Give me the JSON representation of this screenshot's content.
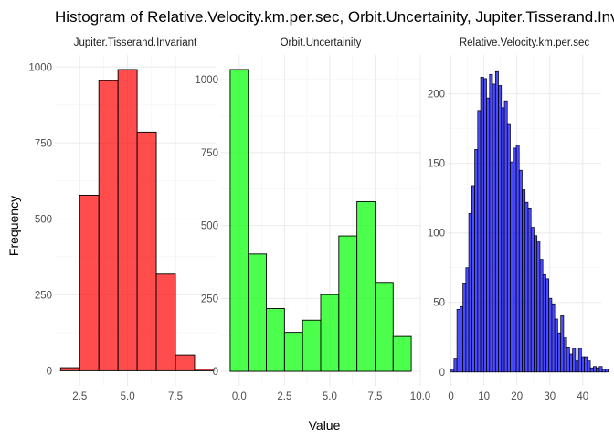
{
  "chart_data": {
    "type": "bar",
    "title": "Histogram of Relative.Velocity.km.per.sec, Orbit.Uncertainity, Jupiter.Tisserand.Invariant",
    "xlabel": "Value",
    "ylabel": "Frequency",
    "panels": [
      {
        "name": "Jupiter.Tisserand.Invariant",
        "fill": "#ff0000",
        "xlim": [
          1.2,
          9.6
        ],
        "ylim": [
          -50,
          1040
        ],
        "xticks": [
          2.5,
          5.0,
          7.5
        ],
        "xtick_labels": [
          "2.5",
          "5.0",
          "7.5"
        ],
        "yticks": [
          0,
          250,
          500,
          750,
          1000
        ],
        "ytick_labels": [
          "0",
          "250",
          "500",
          "750",
          "1000"
        ],
        "bins": [
          {
            "x0": 1.5,
            "x1": 2.5,
            "count": 10
          },
          {
            "x0": 2.5,
            "x1": 3.5,
            "count": 578
          },
          {
            "x0": 3.5,
            "x1": 4.5,
            "count": 955
          },
          {
            "x0": 4.5,
            "x1": 5.5,
            "count": 992
          },
          {
            "x0": 5.5,
            "x1": 6.5,
            "count": 786
          },
          {
            "x0": 6.5,
            "x1": 7.5,
            "count": 318
          },
          {
            "x0": 7.5,
            "x1": 8.5,
            "count": 52
          },
          {
            "x0": 8.5,
            "x1": 9.5,
            "count": 5
          }
        ]
      },
      {
        "name": "Orbit.Uncertainity",
        "fill": "#00ff00",
        "xlim": [
          -1.0,
          10.0
        ],
        "ylim": [
          -50,
          1085
        ],
        "xticks": [
          0.0,
          2.5,
          5.0,
          7.5,
          10.0
        ],
        "xtick_labels": [
          "0.0",
          "2.5",
          "5.0",
          "7.5",
          "10.0"
        ],
        "yticks": [
          0,
          250,
          500,
          750,
          1000
        ],
        "ytick_labels": [
          "0",
          "250",
          "500",
          "750",
          "1000"
        ],
        "bins": [
          {
            "x0": -0.5,
            "x1": 0.5,
            "count": 1035
          },
          {
            "x0": 0.5,
            "x1": 1.5,
            "count": 402
          },
          {
            "x0": 1.5,
            "x1": 2.5,
            "count": 215
          },
          {
            "x0": 2.5,
            "x1": 3.5,
            "count": 133
          },
          {
            "x0": 3.5,
            "x1": 4.5,
            "count": 175
          },
          {
            "x0": 4.5,
            "x1": 5.5,
            "count": 263
          },
          {
            "x0": 5.5,
            "x1": 6.5,
            "count": 464
          },
          {
            "x0": 6.5,
            "x1": 7.5,
            "count": 582
          },
          {
            "x0": 7.5,
            "x1": 8.5,
            "count": 305
          },
          {
            "x0": 8.5,
            "x1": 9.5,
            "count": 122
          }
        ]
      },
      {
        "name": "Relative.Velocity.km.per.sec",
        "fill": "#0000ff",
        "xlim": [
          -1.0,
          45.6
        ],
        "ylim": [
          -10,
          228
        ],
        "xticks": [
          0,
          10,
          20,
          30,
          40
        ],
        "xtick_labels": [
          "0",
          "10",
          "20",
          "30",
          "40"
        ],
        "yticks": [
          0,
          50,
          100,
          150,
          200
        ],
        "ytick_labels": [
          "0",
          "50",
          "100",
          "150",
          "200"
        ],
        "bin_start": 0,
        "bin_width": 0.9,
        "counts": [
          2,
          10,
          45,
          47,
          64,
          75,
          114,
          134,
          160,
          188,
          212,
          211,
          197,
          214,
          207,
          216,
          206,
          190,
          195,
          178,
          151,
          161,
          163,
          145,
          131,
          122,
          118,
          104,
          98,
          94,
          81,
          70,
          67,
          53,
          49,
          38,
          28,
          41,
          25,
          18,
          13,
          17,
          8,
          17,
          11,
          11,
          8,
          3,
          4,
          3,
          4,
          2,
          2
        ]
      }
    ]
  }
}
